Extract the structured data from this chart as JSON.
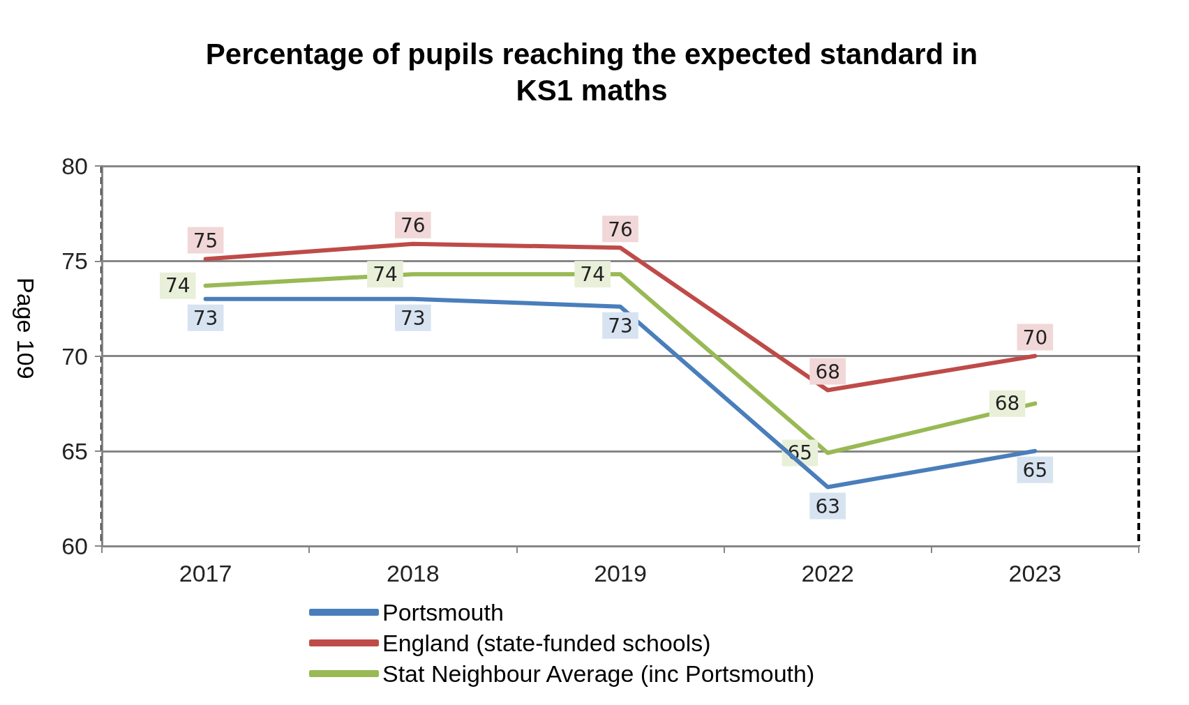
{
  "chart_data": {
    "type": "line",
    "title": "Percentage of pupils reaching the expected standard in\nKS1 maths",
    "categories": [
      "2017",
      "2018",
      "2019",
      "2022",
      "2023"
    ],
    "series": [
      {
        "name": "Portsmouth",
        "color": "#4a7ebb",
        "values": [
          73.0,
          73.0,
          72.6,
          63.1,
          65.0
        ],
        "value_labels": [
          "73",
          "73",
          "73",
          "63",
          "65"
        ]
      },
      {
        "name": "England (state-funded schools)",
        "color": "#be4b48",
        "values": [
          75.1,
          75.9,
          75.7,
          68.2,
          70.0
        ],
        "value_labels": [
          "75",
          "76",
          "76",
          "68",
          "70"
        ]
      },
      {
        "name": "Stat Neighbour Average (inc Portsmouth)",
        "color": "#98b954",
        "values": [
          73.7,
          74.3,
          74.3,
          64.9,
          67.5
        ],
        "value_labels": [
          "74",
          "74",
          "74",
          "65",
          "68"
        ]
      }
    ],
    "ylim": [
      60,
      80
    ],
    "yticks": [
      60,
      65,
      70,
      75,
      80
    ],
    "grid": "y",
    "legend": "bottom",
    "marker": "none",
    "line_style": "solid",
    "annotations": [
      "Page 109"
    ]
  }
}
